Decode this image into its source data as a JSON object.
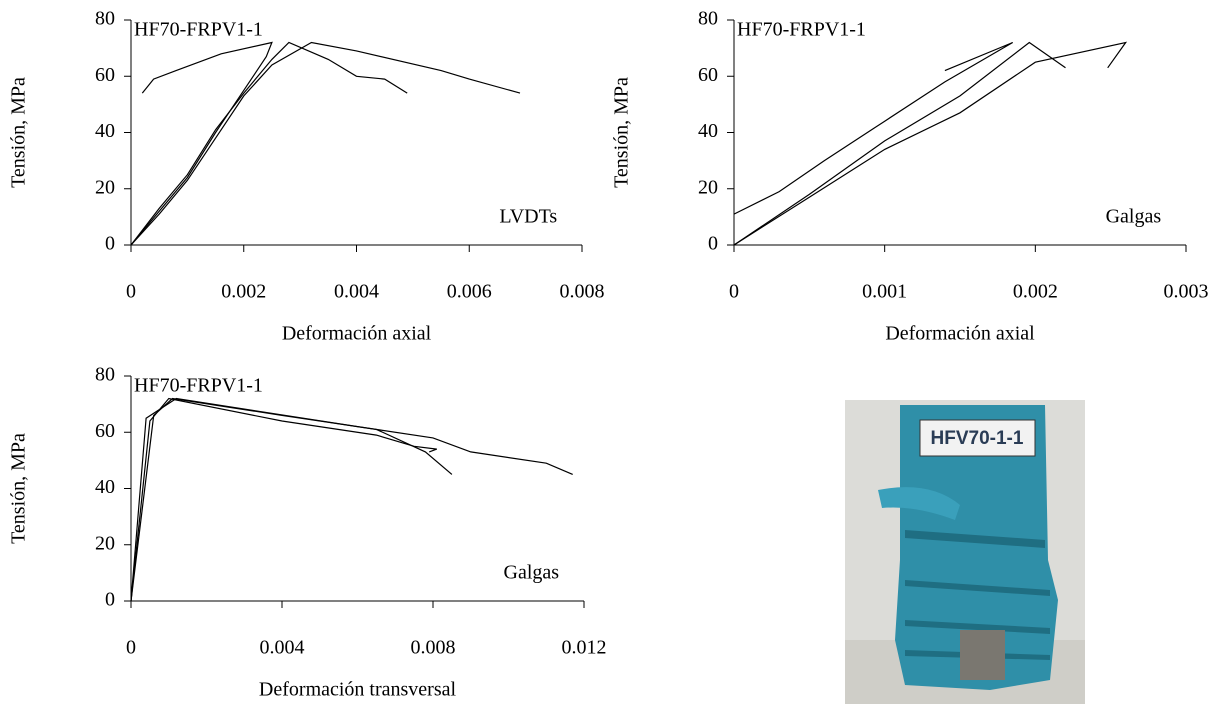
{
  "chart_data": [
    {
      "type": "line",
      "title": "HF70-FRPV1-1",
      "annotation": "LVDTs",
      "x_label": "Deformación axial",
      "y_label": "Tensión, MPa",
      "xlim": [
        0,
        0.008
      ],
      "xticks": [
        0,
        0.002,
        0.004,
        0.006,
        0.008
      ],
      "ylim": [
        0,
        80
      ],
      "yticks": [
        0,
        20,
        40,
        60,
        80
      ],
      "color": "#000000",
      "series": [
        {
          "x": [
            0,
            0.0005,
            0.001,
            0.0015,
            0.002,
            0.0024,
            0.0025,
            0.0016,
            0.0008,
            0.0004,
            0.0002
          ],
          "values": [
            0,
            12,
            24,
            40,
            55,
            67,
            72,
            68,
            62,
            59,
            54
          ]
        },
        {
          "x": [
            0,
            0.0005,
            0.001,
            0.0015,
            0.002,
            0.0025,
            0.0028,
            0.0035,
            0.004,
            0.0045,
            0.0049
          ],
          "values": [
            0,
            13,
            25,
            41,
            54,
            66,
            72,
            66,
            60,
            59,
            54
          ]
        },
        {
          "x": [
            0,
            0.0005,
            0.001,
            0.0015,
            0.002,
            0.0025,
            0.0032,
            0.004,
            0.0055,
            0.006,
            0.0069
          ],
          "values": [
            0,
            11,
            23,
            38,
            53,
            64,
            72,
            69,
            62,
            59,
            54
          ]
        }
      ]
    },
    {
      "type": "line",
      "title": "HF70-FRPV1-1",
      "annotation": "Galgas",
      "x_label": "Deformación axial",
      "y_label": "Tensión, MPa",
      "xlim": [
        0,
        0.003
      ],
      "xticks": [
        0,
        0.001,
        0.002,
        0.003
      ],
      "ylim": [
        0,
        80
      ],
      "yticks": [
        0,
        20,
        40,
        60,
        80
      ],
      "color": "#000000",
      "series": [
        {
          "x": [
            0,
            0.0003,
            0.0006,
            0.001,
            0.0014,
            0.00185,
            0.0014
          ],
          "values": [
            11,
            19,
            30,
            44,
            58,
            72,
            62
          ]
        },
        {
          "x": [
            0,
            0.0005,
            0.001,
            0.0015,
            0.00196,
            0.0022
          ],
          "values": [
            0,
            18,
            37,
            53,
            72,
            63
          ]
        },
        {
          "x": [
            0,
            0.0005,
            0.001,
            0.0015,
            0.002,
            0.0026,
            0.00248
          ],
          "values": [
            0,
            17,
            34,
            47,
            65,
            72,
            63
          ]
        }
      ]
    },
    {
      "type": "line",
      "title": "HF70-FRPV1-1",
      "annotation": "Galgas",
      "x_label": "Deformación transversal",
      "y_label": "Tensión, MPa",
      "xlim": [
        0,
        0.012
      ],
      "xticks": [
        0,
        0.004,
        0.008,
        0.012
      ],
      "ylim": [
        0,
        80
      ],
      "yticks": [
        0,
        20,
        40,
        60,
        80
      ],
      "color": "#000000",
      "series": [
        {
          "x": [
            0,
            0.0005,
            0.001,
            0.004,
            0.0065,
            0.0075,
            0.0081,
            0.0079
          ],
          "values": [
            0,
            64,
            72,
            64,
            59,
            55,
            54,
            53
          ]
        },
        {
          "x": [
            0,
            0.0006,
            0.0011,
            0.004,
            0.0065,
            0.0078,
            0.0085
          ],
          "values": [
            0,
            66,
            72,
            66,
            61,
            53,
            45
          ]
        },
        {
          "x": [
            0,
            0.0004,
            0.0012,
            0.006,
            0.008,
            0.009,
            0.011,
            0.0117
          ],
          "values": [
            0,
            65,
            72,
            62,
            58,
            53,
            49,
            45
          ]
        }
      ]
    }
  ],
  "photo": {
    "label": "HFV70-1-1"
  }
}
